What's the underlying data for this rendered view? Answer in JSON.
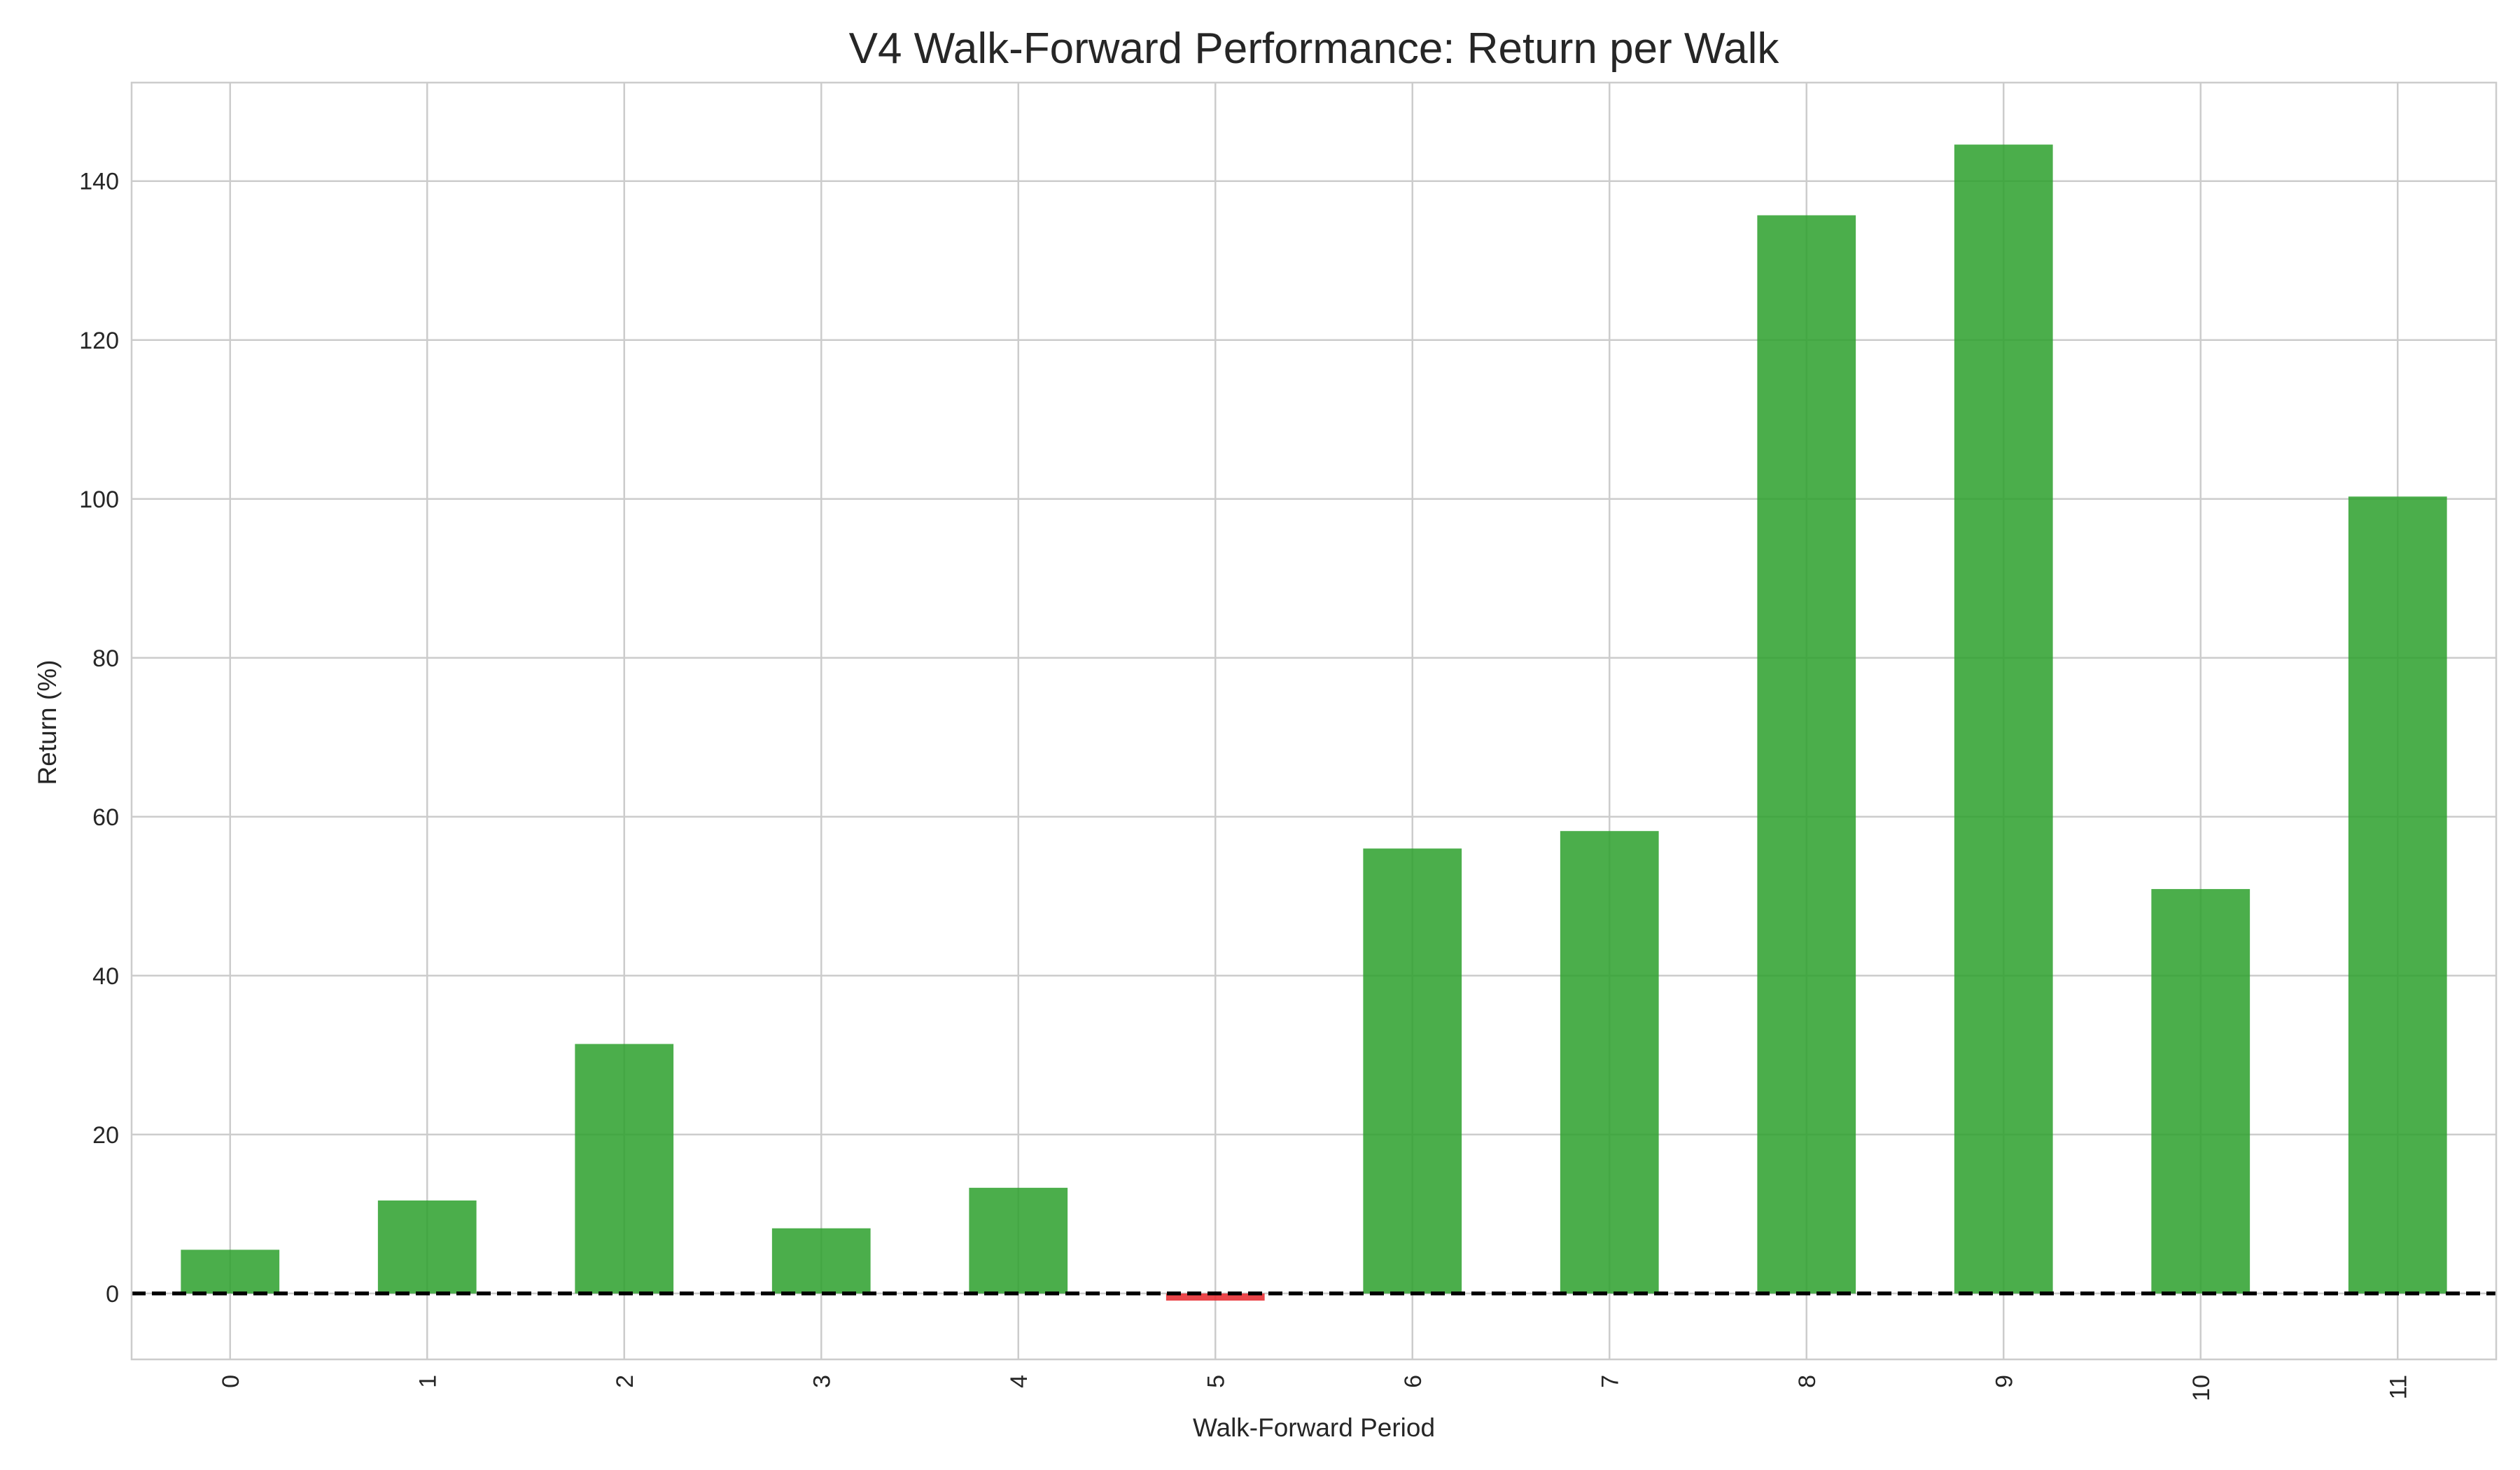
{
  "chart_data": {
    "type": "bar",
    "title": "V4 Walk-Forward Performance: Return per Walk",
    "xlabel": "Walk-Forward Period",
    "ylabel": "Return (%)",
    "categories": [
      "0",
      "1",
      "2",
      "3",
      "4",
      "5",
      "6",
      "7",
      "8",
      "9",
      "10",
      "11"
    ],
    "values": [
      5.5,
      11.7,
      31.4,
      8.2,
      13.3,
      -0.9,
      56.0,
      58.2,
      135.7,
      144.6,
      50.9,
      100.3
    ],
    "ylim": [
      -8.3,
      152.4
    ],
    "yticks": [
      0,
      20,
      40,
      60,
      80,
      100,
      120,
      140
    ],
    "grid": true,
    "positive_color": "#2ca02c",
    "negative_color": "#e8262a",
    "zero_line": {
      "y": 0,
      "style": "dashed",
      "color": "#000000"
    }
  }
}
